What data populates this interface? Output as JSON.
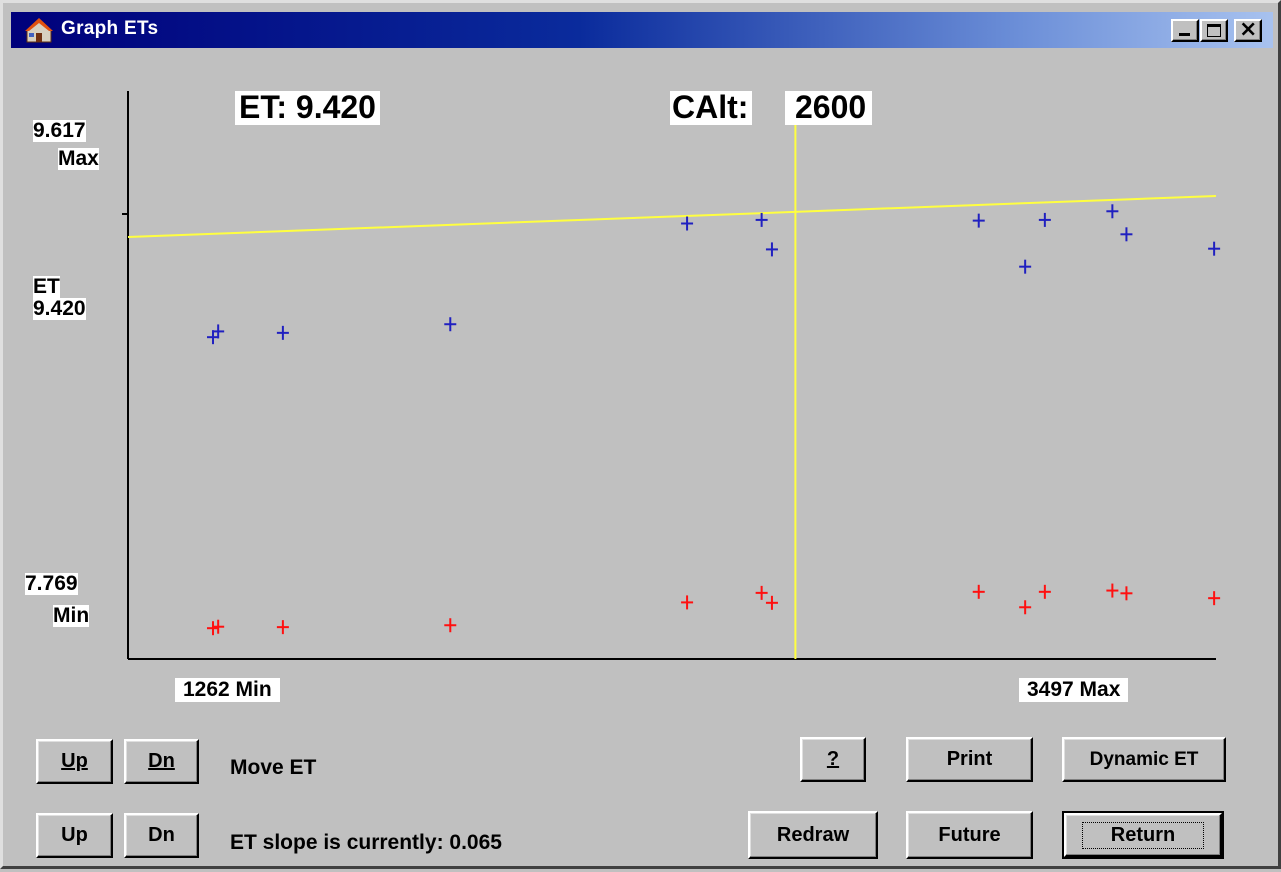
{
  "window": {
    "title": "Graph ETs",
    "app_icon": "house-icon",
    "controls": [
      "minimize-icon",
      "maximize-icon",
      "close-icon"
    ]
  },
  "readout": {
    "et": "ET: 9.420",
    "calt_label": "CAlt:",
    "calt_value": "2600"
  },
  "y_labels": {
    "max_value": "9.617",
    "max_word": "Max",
    "et_word": "ET",
    "et_value": "9.420",
    "min_value": "7.769",
    "min_word": "Min"
  },
  "x_labels": {
    "min": "1262 Min",
    "max": "3497 Max"
  },
  "chart_data": {
    "type": "scatter",
    "x_range": [
      1262,
      3497
    ],
    "y_range": [
      7.769,
      9.617
    ],
    "cursor_x": 2600,
    "current_et": 9.42,
    "slope": 0.065,
    "colors": {
      "blue": "#2020c0",
      "red": "#ff1010",
      "yellow": "#ffff40",
      "axis": "#000000"
    },
    "blue_points": [
      {
        "x": 1358,
        "y": 9.361
      },
      {
        "x": 1369,
        "y": 9.369
      },
      {
        "x": 1507,
        "y": 9.367
      },
      {
        "x": 1864,
        "y": 9.379
      },
      {
        "x": 2369,
        "y": 9.519
      },
      {
        "x": 2528,
        "y": 9.524
      },
      {
        "x": 2550,
        "y": 9.483
      },
      {
        "x": 2991,
        "y": 9.523
      },
      {
        "x": 3132,
        "y": 9.524
      },
      {
        "x": 3276,
        "y": 9.536
      },
      {
        "x": 3306,
        "y": 9.504
      },
      {
        "x": 3493,
        "y": 9.484
      },
      {
        "x": 3090,
        "y": 9.459
      }
    ],
    "red_points": [
      {
        "x": 1358,
        "y": 7.839
      },
      {
        "x": 1369,
        "y": 7.846
      },
      {
        "x": 1507,
        "y": 7.844
      },
      {
        "x": 1864,
        "y": 7.853
      },
      {
        "x": 2369,
        "y": 7.961
      },
      {
        "x": 2528,
        "y": 8.006
      },
      {
        "x": 2550,
        "y": 7.959
      },
      {
        "x": 2991,
        "y": 8.011
      },
      {
        "x": 3090,
        "y": 7.938
      },
      {
        "x": 3132,
        "y": 8.011
      },
      {
        "x": 3276,
        "y": 8.017
      },
      {
        "x": 3306,
        "y": 8.004
      },
      {
        "x": 3493,
        "y": 7.981
      }
    ],
    "fit_line": [
      {
        "x": 1262,
        "y": 9.367
      },
      {
        "x": 3497,
        "y": 9.481
      }
    ]
  },
  "controls": {
    "up": "Up",
    "dn": "Dn",
    "move_et": "Move ET",
    "slope_text": "ET slope is currently: 0.065",
    "help": "?",
    "print": "Print",
    "dynamic_et": "Dynamic ET",
    "redraw": "Redraw",
    "future": "Future",
    "return": "Return"
  }
}
